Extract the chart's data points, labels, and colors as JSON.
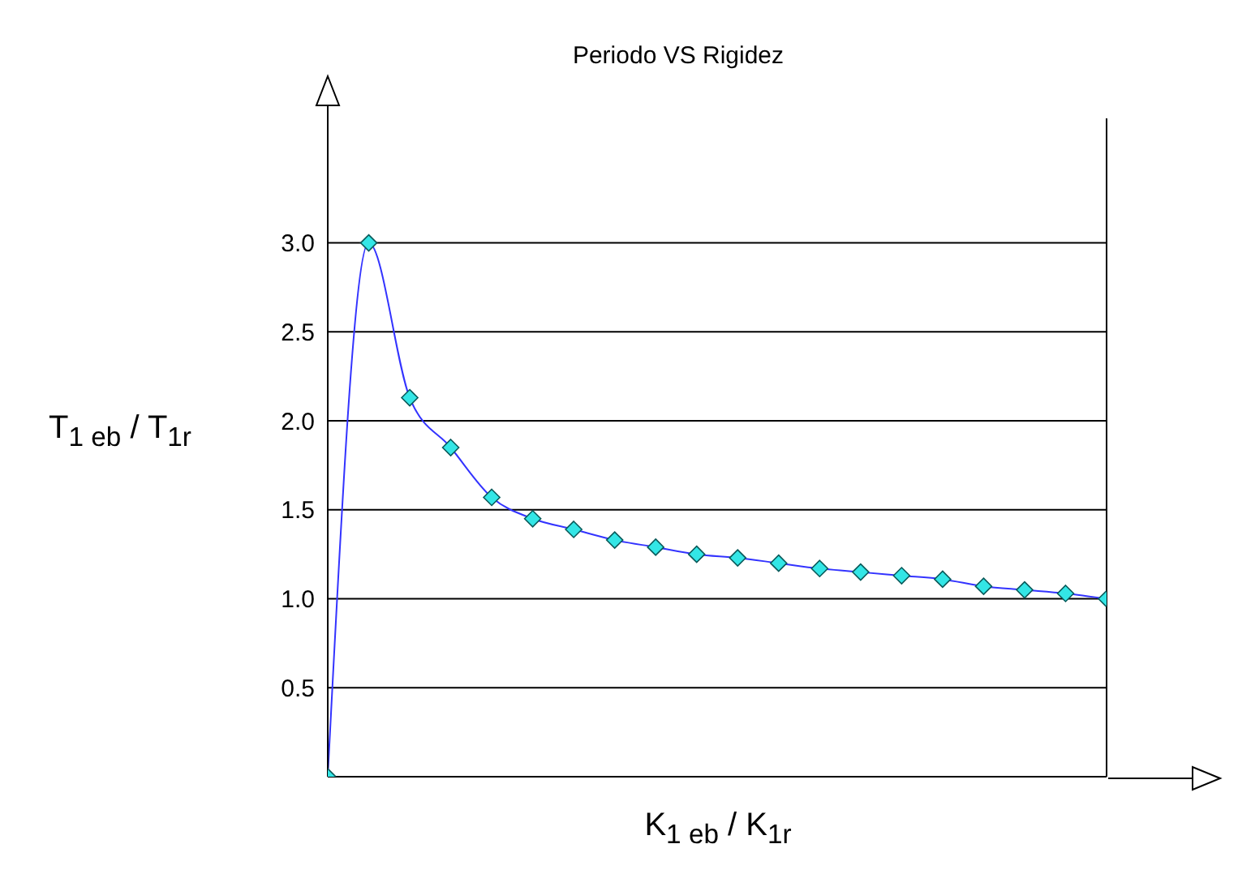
{
  "chart_data": {
    "type": "line",
    "title": "Periodo VS Rigidez",
    "xlabel": "K$_{1 eb}$ / K$_{1r}$",
    "ylabel": "T$_{1 eb}$ / T$_{1r}$",
    "categories": [
      null,
      null,
      null,
      null,
      null,
      null,
      null,
      null,
      null,
      null,
      null,
      null,
      null,
      null,
      null,
      null,
      null,
      null,
      null,
      null
    ],
    "series": [
      {
        "color": "#3333ff",
        "marker": "diamond",
        "values": [
          0,
          3.0,
          2.13,
          1.85,
          1.57,
          1.45,
          1.39,
          1.33,
          1.29,
          1.25,
          1.23,
          1.2,
          1.17,
          1.15,
          1.13,
          1.11,
          1.07,
          1.05,
          1.03,
          1.0
        ]
      }
    ],
    "ylim": [
      0,
      3.7
    ],
    "yticks": [
      0.5,
      {
        "value": 1,
        "label": "1.0"
      },
      1.5,
      {
        "value": 2,
        "label": "2.0"
      },
      2.5,
      {
        "value": 3,
        "label": "3.0"
      }
    ],
    "grid": "y",
    "tick_labels": "y"
  }
}
